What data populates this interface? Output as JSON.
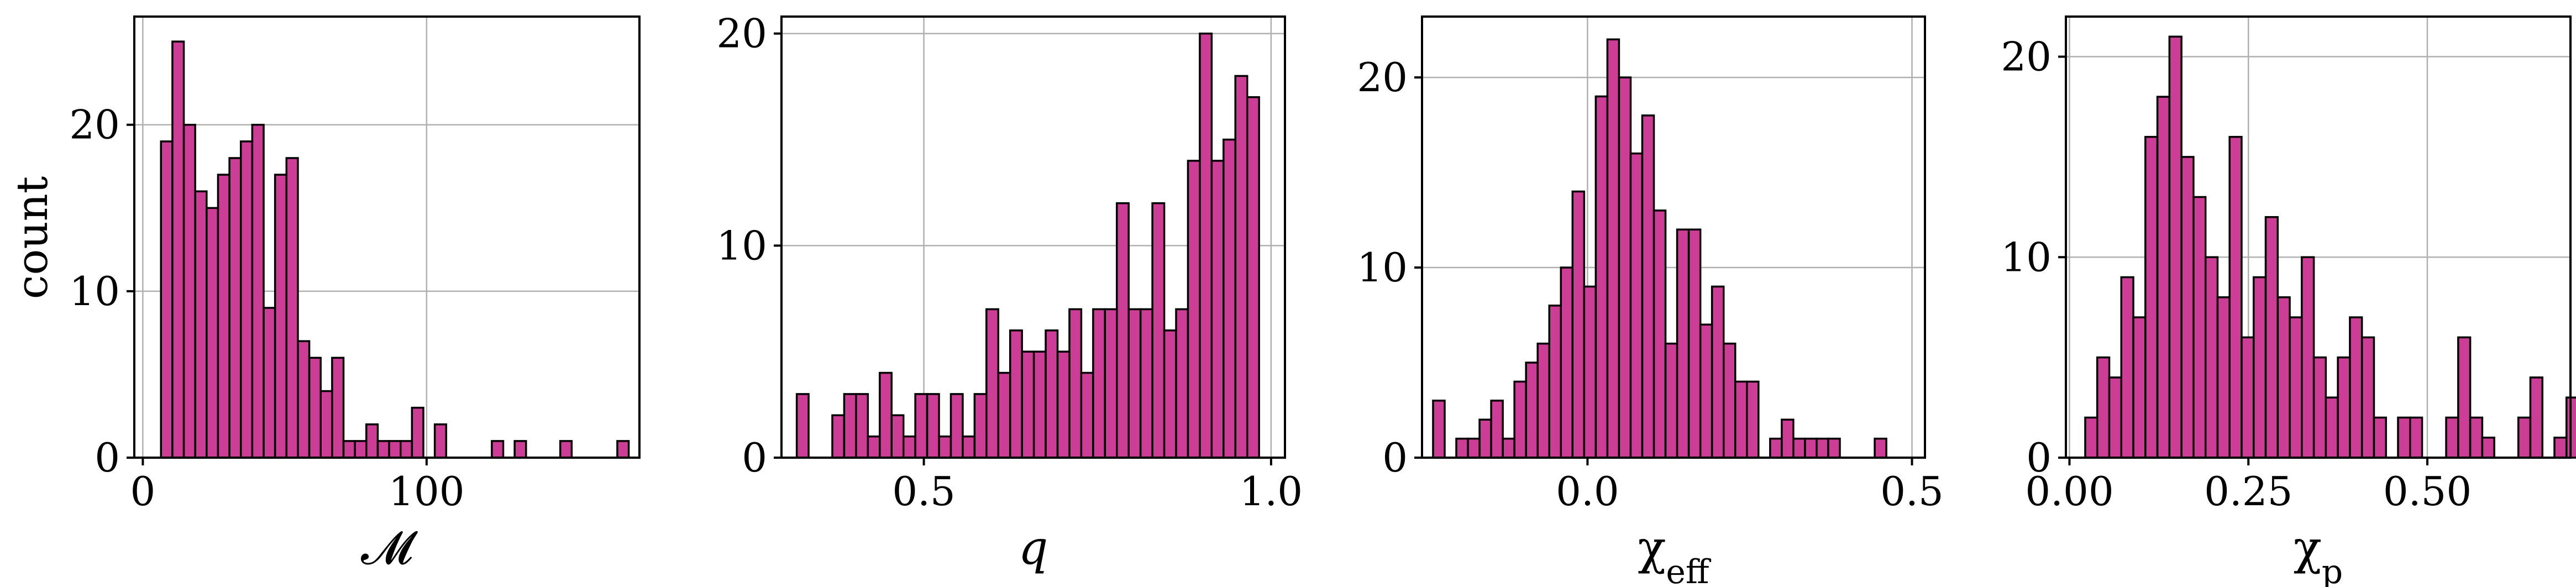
{
  "style": {
    "bar_color": "#cc3d96",
    "bar_edge": "#000000",
    "grid_color": "#b0b0b0"
  },
  "chart_data": [
    {
      "type": "bar",
      "title": "",
      "xlabel": "𝓜",
      "ylabel": "count",
      "grid": true,
      "xlim": [
        -3,
        175
      ],
      "ylim": [
        0,
        26.5
      ],
      "xticks": [
        0,
        100
      ],
      "xtick_labels": [
        "0",
        "100"
      ],
      "yticks": [
        0,
        10,
        20
      ],
      "ytick_labels": [
        "0",
        "10",
        "20"
      ],
      "bin_width": 4.02,
      "bin_start": 6.4,
      "values": [
        19,
        25,
        20,
        16,
        15,
        17,
        18,
        19,
        20,
        9,
        17,
        18,
        7,
        6,
        4,
        6,
        1,
        1,
        2,
        1,
        1,
        1,
        3,
        0,
        2,
        0,
        0,
        0,
        0,
        1,
        0,
        1,
        0,
        0,
        0,
        1,
        0,
        0,
        0,
        0,
        1
      ]
    },
    {
      "type": "bar",
      "title": "",
      "xlabel": "q",
      "ylabel": "",
      "grid": true,
      "xlim": [
        0.295,
        1.02
      ],
      "ylim": [
        0,
        20.8
      ],
      "xticks": [
        0.5,
        1.0
      ],
      "xtick_labels": [
        "0.5",
        "1.0"
      ],
      "yticks": [
        0,
        10,
        20
      ],
      "ytick_labels": [
        "0",
        "10",
        "20"
      ],
      "bin_width": 0.01707,
      "bin_start": 0.317,
      "values": [
        3,
        0,
        0,
        2,
        3,
        3,
        1,
        4,
        2,
        1,
        3,
        3,
        1,
        3,
        1,
        3,
        7,
        4,
        6,
        5,
        5,
        6,
        5,
        7,
        4,
        7,
        7,
        12,
        7,
        7,
        12,
        6,
        7,
        14,
        20,
        14,
        15,
        18,
        17
      ]
    },
    {
      "type": "bar",
      "title": "",
      "xlabel": "χ_eff",
      "ylabel": "",
      "grid": true,
      "xlim": [
        -0.255,
        0.52
      ],
      "ylim": [
        0,
        23.2
      ],
      "xticks": [
        0.0,
        0.5
      ],
      "xtick_labels": [
        "0.0",
        "0.5"
      ],
      "yticks": [
        0,
        10,
        20
      ],
      "ytick_labels": [
        "0",
        "10",
        "20"
      ],
      "bin_width": 0.01791,
      "bin_start": -0.238,
      "values": [
        3,
        0,
        1,
        1,
        2,
        3,
        1,
        4,
        5,
        6,
        8,
        10,
        14,
        9,
        19,
        22,
        20,
        16,
        18,
        13,
        6,
        12,
        12,
        7,
        9,
        6,
        4,
        4,
        0,
        1,
        2,
        1,
        1,
        1,
        1,
        0,
        0,
        0,
        1
      ]
    },
    {
      "type": "bar",
      "title": "",
      "xlabel": "χ_p",
      "ylabel": "",
      "grid": true,
      "xlim": [
        -0.005,
        0.7
      ],
      "ylim": [
        0,
        22
      ],
      "xticks": [
        0.0,
        0.25,
        0.5
      ],
      "xtick_labels": [
        "0.00",
        "0.25",
        "0.50"
      ],
      "yticks": [
        0,
        10,
        20
      ],
      "ytick_labels": [
        "0",
        "10",
        "20"
      ],
      "bin_width": 0.01681,
      "bin_start": 0.022,
      "values": [
        2,
        5,
        4,
        9,
        7,
        16,
        18,
        21,
        15,
        13,
        10,
        8,
        16,
        6,
        9,
        12,
        8,
        7,
        10,
        5,
        3,
        5,
        7,
        6,
        2,
        0,
        2,
        2,
        0,
        0,
        2,
        6,
        2,
        1,
        0,
        0,
        2,
        4,
        0,
        1,
        3
      ]
    }
  ]
}
